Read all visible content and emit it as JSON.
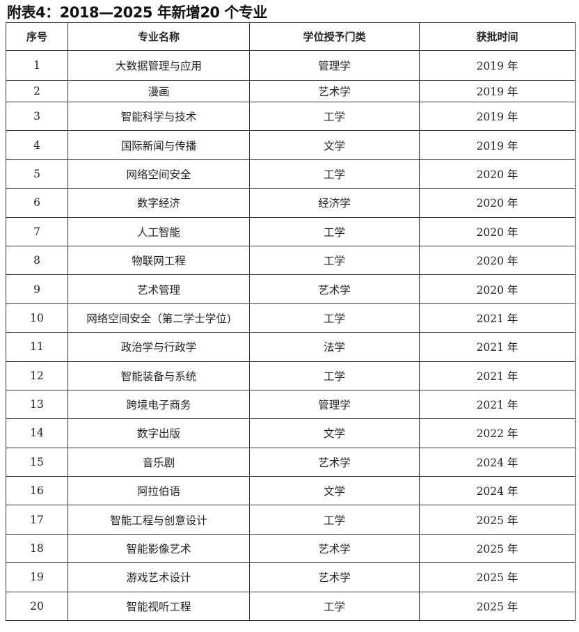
{
  "title": "附表4：2018—2025 年新增20 个专业",
  "headers": [
    "序号",
    "专业名称",
    "学位授予门类",
    "获批时间"
  ],
  "rows": [
    [
      "1",
      "大数据管理与应用",
      "管理学",
      "2019 年"
    ],
    [
      "2",
      "漫画",
      "艺术学",
      "2019 年"
    ],
    [
      "3",
      "智能科学与技术",
      "工学",
      "2019 年"
    ],
    [
      "4",
      "国际新闻与传播",
      "文学",
      "2019 年"
    ],
    [
      "5",
      "网络空间安全",
      "工学",
      "2020 年"
    ],
    [
      "6",
      "数字经济",
      "经济学",
      "2020 年"
    ],
    [
      "7",
      "人工智能",
      "工学",
      "2020 年"
    ],
    [
      "8",
      "物联网工程",
      "工学",
      "2020 年"
    ],
    [
      "9",
      "艺术管理",
      "艺术学",
      "2020 年"
    ],
    [
      "10",
      "网络空间安全（第二学士学位)",
      "工学",
      "2021 年"
    ],
    [
      "11",
      "政治学与行政学",
      "法学",
      "2021 年"
    ],
    [
      "12",
      "智能装备与系统",
      "工学",
      "2021 年"
    ],
    [
      "13",
      "跨境电子商务",
      "管理学",
      "2021 年"
    ],
    [
      "14",
      "数字出版",
      "文学",
      "2022 年"
    ],
    [
      "15",
      "音乐剧",
      "艺术学",
      "2024 年"
    ],
    [
      "16",
      "阿拉伯语",
      "文学",
      "2024 年"
    ],
    [
      "17",
      "智能工程与创意设计",
      "工学",
      "2025 年"
    ],
    [
      "18",
      "智能影像艺术",
      "艺术学",
      "2025 年"
    ],
    [
      "19",
      "游戏艺术设计",
      "艺术学",
      "2025 年"
    ],
    [
      "20",
      "智能视听工程",
      "工学",
      "2025 年"
    ]
  ]
}
